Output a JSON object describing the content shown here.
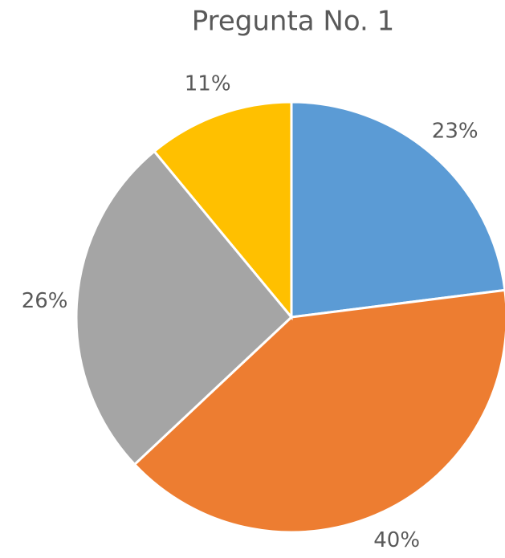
{
  "chart_data": {
    "type": "pie",
    "title": "Pregunta No. 1",
    "values": [
      23,
      40,
      26,
      11
    ],
    "value_labels": [
      "23%",
      "40%",
      "26%",
      "11%"
    ],
    "colors": [
      "#5b9bd5",
      "#ed7d31",
      "#a5a5a5",
      "#ffc000"
    ]
  }
}
